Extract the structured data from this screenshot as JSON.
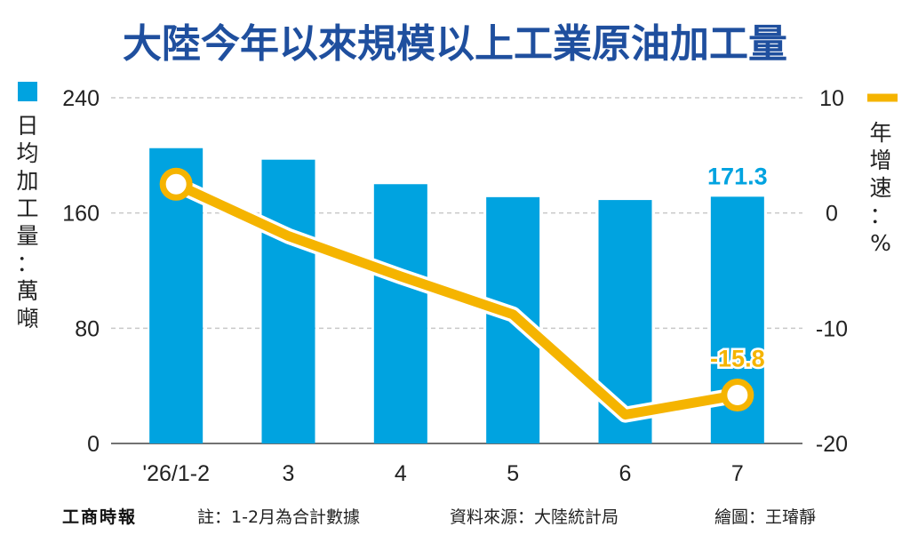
{
  "title": "大陸今年以來規模以上工業原油加工量",
  "left_axis_label": "日均加工量：萬噸",
  "right_axis_label": "年增速：%",
  "footer": {
    "brand": "工商時報",
    "note": "註：1-2月為合計數據",
    "source": "資料來源：大陸統計局",
    "credit": "繪圖：王璿靜"
  },
  "colors": {
    "title": "#1f4f9e",
    "bar": "#00a3e0",
    "line": "#f5b400",
    "bar_label": "#00a3e0",
    "line_label": "#f5b400",
    "grid": "#c8c8c8"
  },
  "chart_data": {
    "type": "bar",
    "categories": [
      "'26/1-2",
      "3",
      "4",
      "5",
      "6",
      "7"
    ],
    "series": [
      {
        "values": [
          205,
          197,
          180,
          171,
          169,
          171.3
        ],
        "axis": "left"
      },
      {
        "type": "line",
        "values": [
          2.5,
          -2,
          -5.5,
          -8.8,
          -17.5,
          -15.8
        ],
        "axis": "right"
      }
    ],
    "ylim_left": [
      0,
      240
    ],
    "yticks_left": [
      0,
      80,
      160,
      240
    ],
    "ylim_right": [
      -20,
      10
    ],
    "yticks_right": [
      -20,
      -10,
      0,
      10
    ],
    "data_labels": [
      {
        "series": 0,
        "index": 5,
        "text": "171.3"
      },
      {
        "series": 1,
        "index": 5,
        "text": "-15.8"
      }
    ],
    "grid": true
  }
}
